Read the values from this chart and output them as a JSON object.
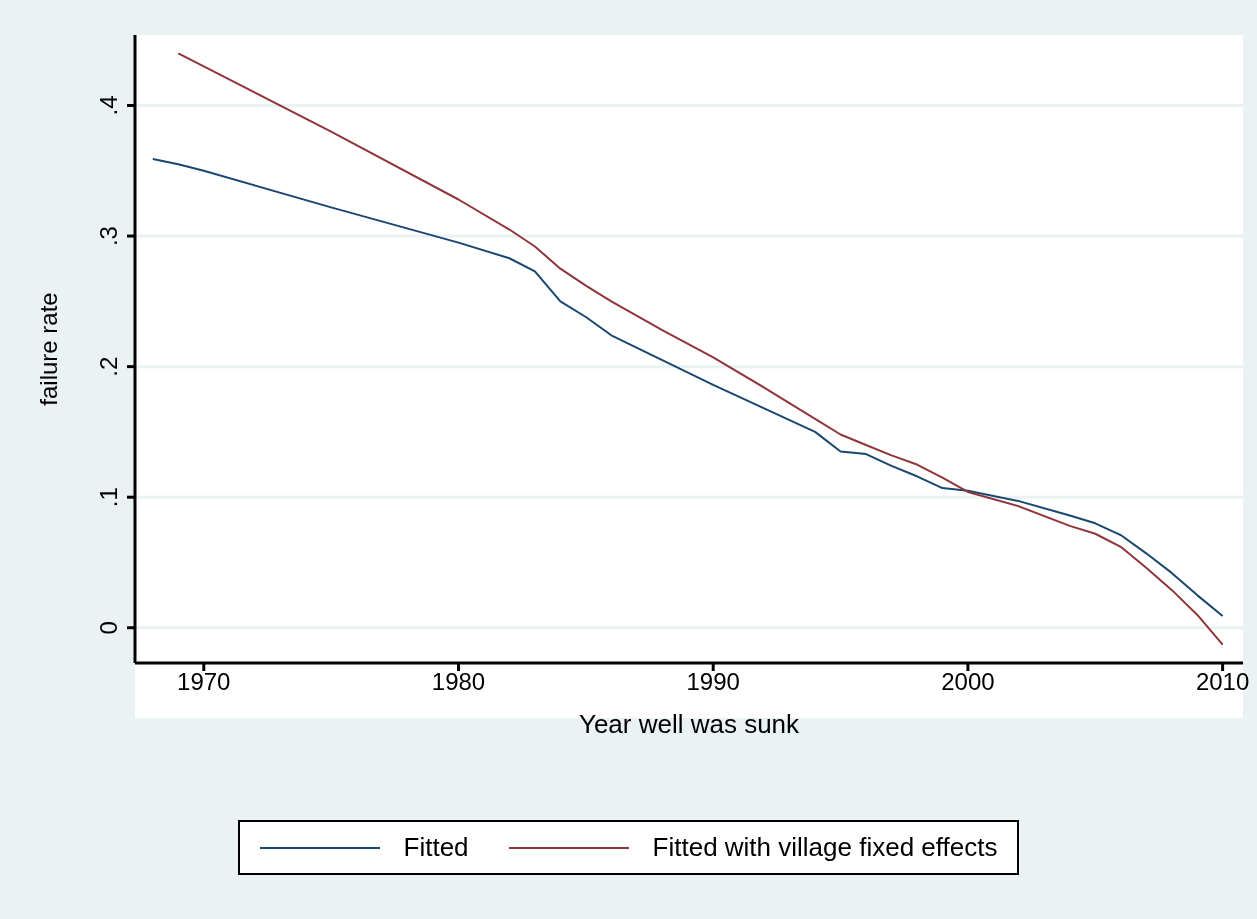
{
  "chart_data": {
    "type": "line",
    "xlabel": "Year well was sunk",
    "ylabel": "failure rate",
    "x": [
      1968,
      1969,
      1970,
      1975,
      1980,
      1982,
      1983,
      1984,
      1985,
      1986,
      1988,
      1990,
      1992,
      1994,
      1995,
      1996,
      1997,
      1998,
      1999,
      2000,
      2002,
      2004,
      2005,
      2006,
      2007,
      2008,
      2009,
      2010
    ],
    "series": [
      {
        "name": "Fitted",
        "color": "#1a476f",
        "values": [
          0.359,
          0.355,
          0.35,
          0.322,
          0.295,
          0.283,
          0.273,
          0.25,
          0.238,
          0.224,
          0.205,
          0.186,
          0.168,
          0.15,
          0.135,
          0.133,
          0.124,
          0.116,
          0.107,
          0.105,
          0.097,
          0.086,
          0.08,
          0.071,
          0.057,
          0.042,
          0.025,
          0.009
        ]
      },
      {
        "name": "Fitted with village fixed effects",
        "color": "#90353b",
        "values": [
          null,
          0.44,
          0.43,
          0.38,
          0.328,
          0.305,
          0.292,
          0.275,
          0.262,
          0.25,
          0.228,
          0.207,
          0.184,
          0.16,
          0.148,
          0.14,
          0.132,
          0.125,
          0.115,
          0.104,
          0.093,
          0.078,
          0.072,
          0.062,
          0.046,
          0.029,
          0.01,
          -0.013
        ]
      }
    ],
    "xlim": [
      1967.3,
      2010.8
    ],
    "xticks": [
      1970,
      1980,
      1990,
      2000,
      2010
    ],
    "ylim": [
      -0.027,
      0.454
    ],
    "yticks": [
      {
        "value": 0,
        "label": "0"
      },
      {
        "value": 0.1,
        "label": ".1"
      },
      {
        "value": 0.2,
        "label": ".2"
      },
      {
        "value": 0.3,
        "label": ".3"
      },
      {
        "value": 0.4,
        "label": ".4"
      }
    ],
    "grid": "y",
    "legend": "bottom",
    "marker": "none",
    "line_style": "solid"
  }
}
